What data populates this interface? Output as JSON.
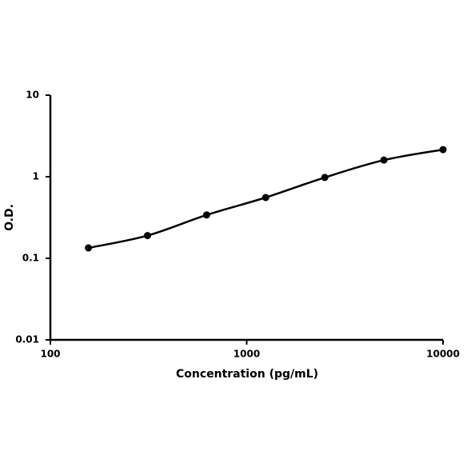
{
  "chart_data": {
    "type": "line",
    "x_label": "Concentration (pg/mL)",
    "y_label": "O.D.",
    "x": [
      156.25,
      312.5,
      625,
      1250,
      2500,
      5000,
      10000
    ],
    "series": [
      {
        "color": "#000000",
        "values": [
          0.134,
          0.19,
          0.34,
          0.556,
          0.98,
          1.6,
          2.15
        ]
      }
    ],
    "xscale": "log",
    "yscale": "log",
    "xlim": [
      100,
      10000
    ],
    "xticks": [
      100,
      1000,
      10000
    ],
    "ylim": [
      0.01,
      10
    ],
    "yticks": [
      0.01,
      0.1,
      1,
      10
    ]
  }
}
